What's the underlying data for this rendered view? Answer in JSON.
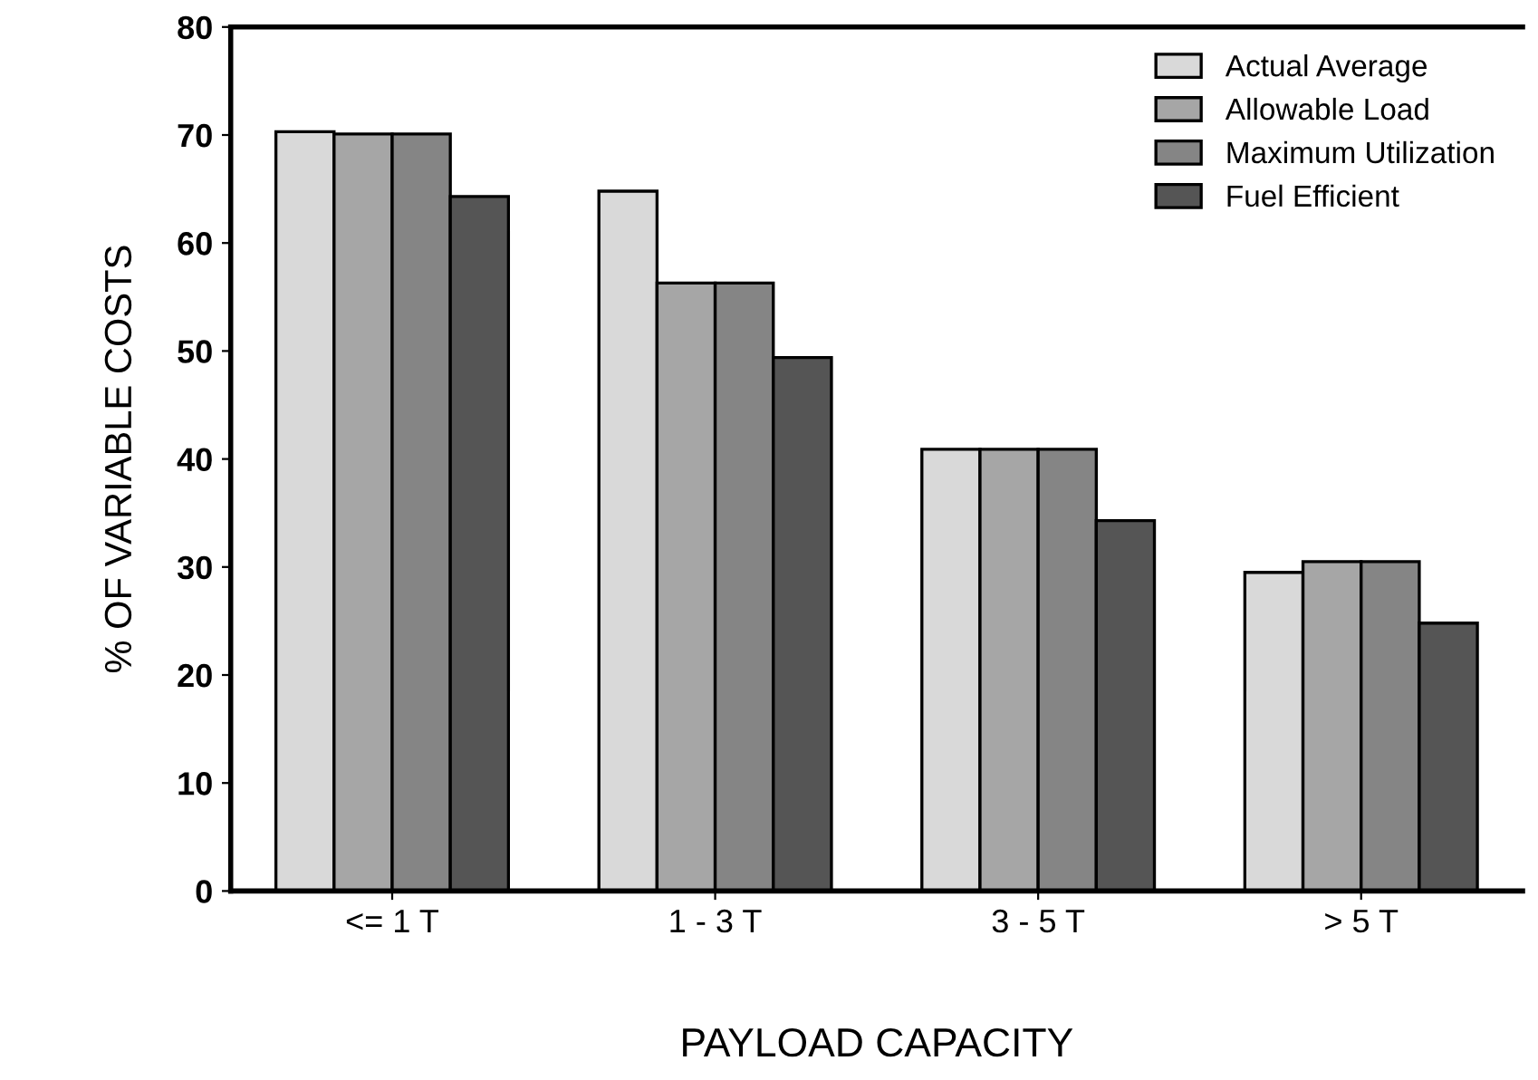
{
  "chart_data": {
    "type": "bar",
    "xlabel": "PAYLOAD CAPACITY",
    "ylabel": "% OF VARIABLE COSTS",
    "categories": [
      "<= 1 T",
      "1 - 3 T",
      "3 - 5 T",
      "> 5 T"
    ],
    "series": [
      {
        "name": "Actual Average",
        "color": "#d9d9d9",
        "values": [
          70.3,
          64.8,
          40.9,
          29.5
        ]
      },
      {
        "name": "Allowable Load",
        "color": "#a6a6a6",
        "values": [
          70.1,
          56.3,
          40.9,
          30.5
        ]
      },
      {
        "name": "Maximum Utilization",
        "color": "#858585",
        "values": [
          70.1,
          56.3,
          40.9,
          30.5
        ]
      },
      {
        "name": "Fuel Efficient",
        "color": "#555555",
        "values": [
          64.3,
          49.4,
          34.3,
          24.8
        ]
      }
    ],
    "ylim": [
      0,
      80
    ],
    "yticks": [
      0,
      10,
      20,
      30,
      40,
      50,
      60,
      70,
      80
    ],
    "grid": false,
    "legend": "top right"
  }
}
